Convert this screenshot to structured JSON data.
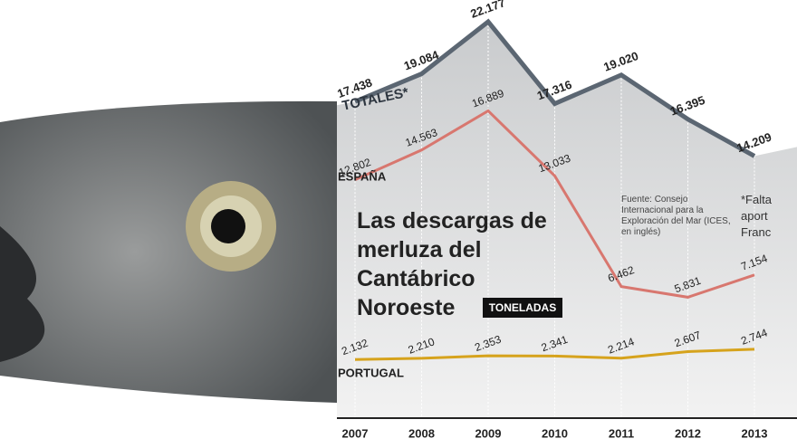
{
  "chart_data": {
    "type": "line",
    "title": "Las descargas de merluza del Cantábrico Noroeste",
    "unit_badge": "TONELADAS",
    "source": "Fuente: Consejo Internacional para la Exploración del Mar (ICES, en inglés)",
    "note_lines": [
      "*Falta",
      "aport",
      "Franc"
    ],
    "categories": [
      "2007",
      "2008",
      "2009",
      "2010",
      "2011",
      "2012",
      "2013"
    ],
    "series": [
      {
        "name": "TOTALES*",
        "color": "#5b6672",
        "values": [
          17438,
          19084,
          22177,
          17316,
          19020,
          16395,
          14209
        ],
        "value_labels": [
          "17.438",
          "19.084",
          "22.177",
          "17.316",
          "19.020",
          "16.395",
          "14.209"
        ]
      },
      {
        "name": "ESPAÑA",
        "color": "#d8776f",
        "values": [
          12802,
          14563,
          16889,
          13033,
          6462,
          5831,
          7154
        ],
        "value_labels": [
          "12.802",
          "14.563",
          "16.889",
          "13.033",
          "6.462",
          "5.831",
          "7.154"
        ]
      },
      {
        "name": "PORTUGAL",
        "color": "#d6a31c",
        "values": [
          2132,
          2210,
          2353,
          2341,
          2214,
          2607,
          2744
        ],
        "value_labels": [
          "2.132",
          "2.210",
          "2.353",
          "2.341",
          "2.214",
          "2.607",
          "2.744"
        ]
      }
    ]
  }
}
